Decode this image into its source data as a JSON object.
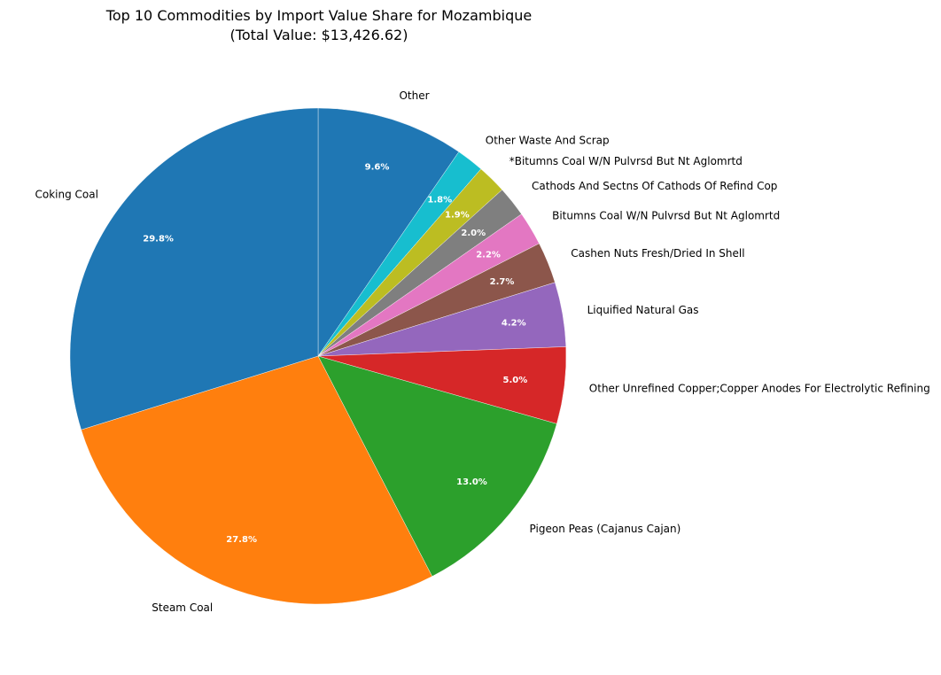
{
  "chart_data": {
    "type": "pie",
    "title": "Top 10 Commodities by Import Value Share for Mozambique",
    "subtitle": "(Total Value: $13,426.62)",
    "start_angle_deg": 90,
    "direction": "clockwise",
    "slices": [
      {
        "label": "Other",
        "percent": 9.6,
        "pct_label": "9.6%",
        "color": "#1f77b4"
      },
      {
        "label": "Other Waste And Scrap",
        "percent": 1.8,
        "pct_label": "1.8%",
        "color": "#17becf"
      },
      {
        "label": "*Bitumns Coal W/N Pulvrsd But Nt Aglomrtd",
        "percent": 1.9,
        "pct_label": "1.9%",
        "color": "#bcbd22"
      },
      {
        "label": "Cathods And Sectns Of Cathods Of Refind Cop",
        "percent": 2.0,
        "pct_label": "2.0%",
        "color": "#7f7f7f"
      },
      {
        "label": "Bitumns Coal W/N Pulvrsd But Nt Aglomrtd",
        "percent": 2.2,
        "pct_label": "2.2%",
        "color": "#e377c2"
      },
      {
        "label": "Cashen Nuts Fresh/Dried In Shell",
        "percent": 2.7,
        "pct_label": "2.7%",
        "color": "#8c564b"
      },
      {
        "label": "Liquified Natural Gas",
        "percent": 4.2,
        "pct_label": "4.2%",
        "color": "#9467bd"
      },
      {
        "label": "Other Unrefined Copper;Copper Anodes For Electrolytic Refining",
        "percent": 5.0,
        "pct_label": "5.0%",
        "color": "#d62728"
      },
      {
        "label": "Pigeon Peas (Cajanus Cajan)",
        "percent": 13.0,
        "pct_label": "13.0%",
        "color": "#2ca02c"
      },
      {
        "label": "Steam Coal",
        "percent": 27.8,
        "pct_label": "27.8%",
        "color": "#ff7f0e"
      },
      {
        "label": "Coking Coal",
        "percent": 29.8,
        "pct_label": "29.8%",
        "color": "#1f77b4"
      }
    ]
  }
}
